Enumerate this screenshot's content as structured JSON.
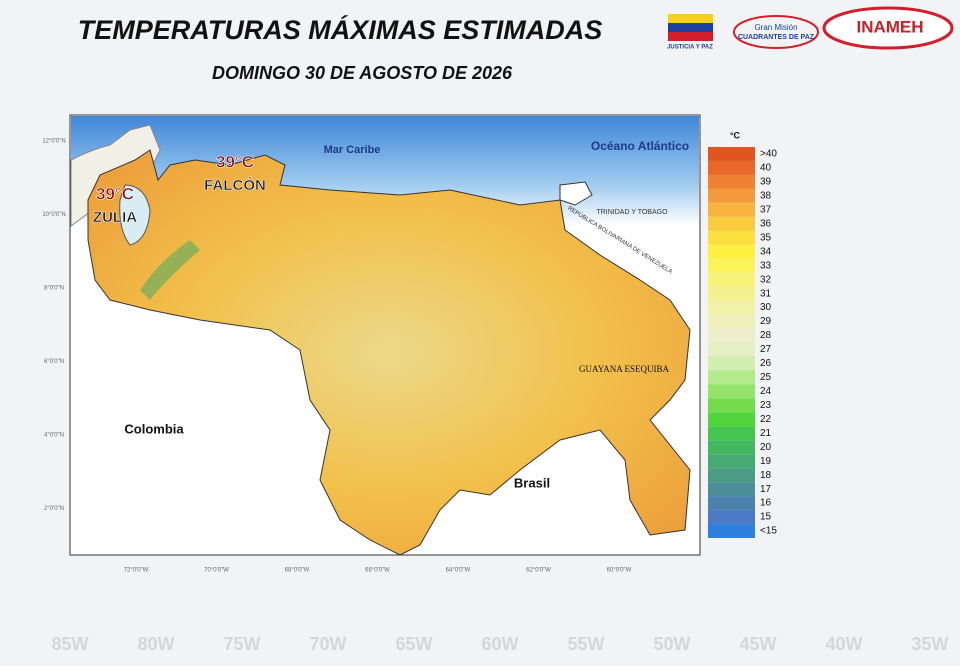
{
  "header": {
    "title": "TEMPERATURAS MÁXIMAS ESTIMADAS",
    "subtitle": "DOMINGO 30 DE AGOSTO DE 2026"
  },
  "logos": {
    "flag_caption": "JUSTICIA Y PAZ",
    "mision_top": "Gran Misión",
    "mision_name": "CUADRANTES DE PAZ",
    "inameh": "INAMEH"
  },
  "map": {
    "labels": {
      "sea": "Mar Caribe",
      "ocean": "Océano Atlántico",
      "colombia": "Colombia",
      "brasil": "Brasil",
      "esequibo": "GUAYANA ESEQUIBA",
      "trinidad": "TRINIDAD Y TOBAGO",
      "venezuela_border": "REPÚBLICA BOLIVARIANA DE VENEZUELA"
    },
    "annotations": [
      {
        "value": "39°C",
        "place": "ZULIA"
      },
      {
        "value": "39°C",
        "place": "FALCÓN"
      }
    ],
    "lat_labels": [
      "12°0'0\"N",
      "10°0'0\"N",
      "8°0'0\"N",
      "6°0'0\"N",
      "4°0'0\"N",
      "2°0'0\"N"
    ],
    "lon_labels": [
      "72°0'0\"W",
      "70°0'0\"W",
      "68°0'0\"W",
      "66°0'0\"W",
      "64°0'0\"W",
      "62°0'0\"W",
      "60°0'0\"W"
    ]
  },
  "background_lon_labels": [
    "85W",
    "80W",
    "75W",
    "70W",
    "65W",
    "60W",
    "55W",
    "50W",
    "45W",
    "40W",
    "35W"
  ],
  "legend": {
    "unit": "°C",
    "items": [
      {
        "label": ">40",
        "color": "#e0541e"
      },
      {
        "label": "40",
        "color": "#e9692a"
      },
      {
        "label": "39",
        "color": "#ee8132"
      },
      {
        "label": "38",
        "color": "#f39a3a"
      },
      {
        "label": "37",
        "color": "#f7b43f"
      },
      {
        "label": "36",
        "color": "#f9cb3f"
      },
      {
        "label": "35",
        "color": "#fbe03f"
      },
      {
        "label": "34",
        "color": "#fdf040"
      },
      {
        "label": "33",
        "color": "#fbf35a"
      },
      {
        "label": "32",
        "color": "#f7f27a"
      },
      {
        "label": "31",
        "color": "#f3f190"
      },
      {
        "label": "30",
        "color": "#f1f1a8"
      },
      {
        "label": "29",
        "color": "#f0f0bc"
      },
      {
        "label": "28",
        "color": "#eeeecc"
      },
      {
        "label": "27",
        "color": "#e6f0c4"
      },
      {
        "label": "26",
        "color": "#d0efb0"
      },
      {
        "label": "25",
        "color": "#b2ea8c"
      },
      {
        "label": "24",
        "color": "#94e46c"
      },
      {
        "label": "23",
        "color": "#72dc4c"
      },
      {
        "label": "22",
        "color": "#52d43c"
      },
      {
        "label": "21",
        "color": "#44c650"
      },
      {
        "label": "20",
        "color": "#44b860"
      },
      {
        "label": "19",
        "color": "#46aa72"
      },
      {
        "label": "18",
        "color": "#4a9c84"
      },
      {
        "label": "17",
        "color": "#4a8e98"
      },
      {
        "label": "16",
        "color": "#4a82ac"
      },
      {
        "label": "15",
        "color": "#4a7ac4"
      },
      {
        "label": "<15",
        "color": "#2d7fe0"
      }
    ]
  }
}
